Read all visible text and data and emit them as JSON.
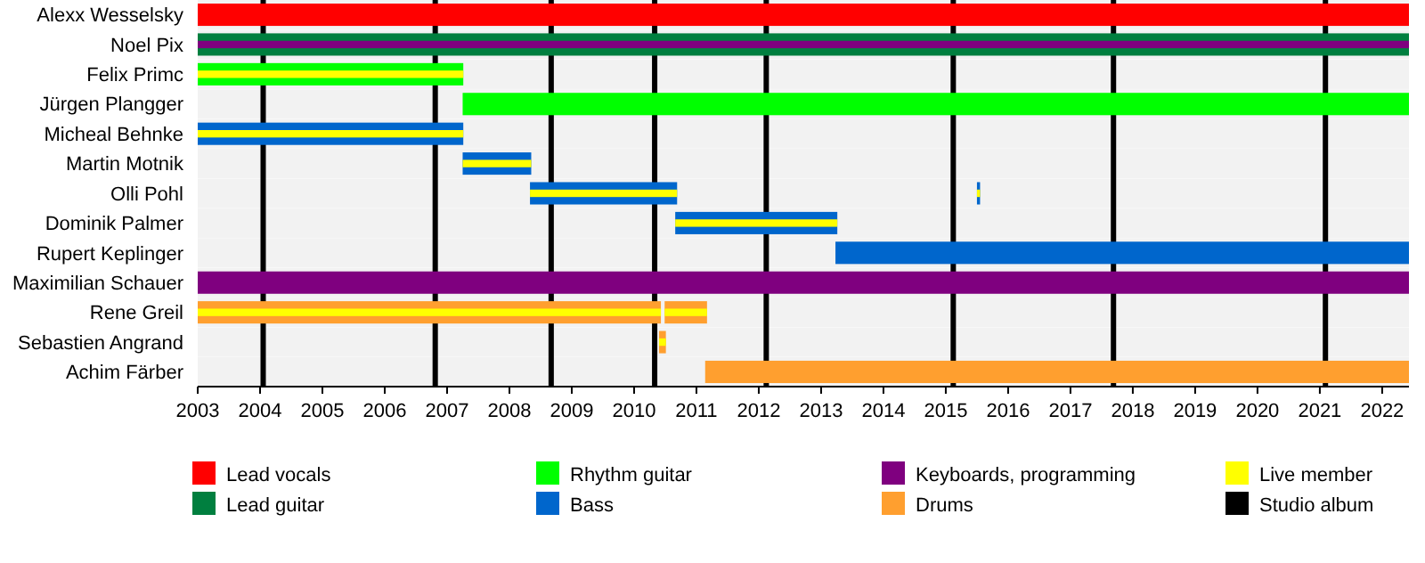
{
  "chart_data": {
    "type": "bar",
    "orientation": "horizontal",
    "categories": [
      "Alexx Wesselsky",
      "Noel Pix",
      "Felix Primc",
      "Jürgen Plangger",
      "Micheal Behnke",
      "Martin Motnik",
      "Olli Pohl",
      "Dominik Palmer",
      "Rupert Keplinger",
      "Maximilian Schauer",
      "Rene Greil",
      "Sebastien Angrand",
      "Achim Färber"
    ],
    "series": [
      {
        "name": "Lead vocals",
        "color": "#ff0000",
        "base": [
          2003,
          null,
          null,
          null,
          null,
          null,
          null,
          null,
          null,
          null,
          null,
          null,
          null
        ],
        "values": [
          19.43,
          null,
          null,
          null,
          null,
          null,
          null,
          null,
          null,
          null,
          null,
          null,
          null
        ]
      },
      {
        "name": "Lead guitar",
        "color": "#007f3f",
        "base": [
          null,
          2003,
          null,
          null,
          null,
          null,
          null,
          null,
          null,
          null,
          null,
          null,
          null
        ],
        "values": [
          null,
          19.43,
          null,
          null,
          null,
          null,
          null,
          null,
          null,
          null,
          null,
          null,
          null
        ]
      },
      {
        "name": "Rhythm guitar",
        "color": "#00ff00",
        "base": [
          null,
          null,
          2003,
          2007.25,
          null,
          null,
          null,
          null,
          null,
          null,
          null,
          null,
          null
        ],
        "values": [
          null,
          null,
          4.26,
          15.18,
          null,
          null,
          null,
          null,
          null,
          null,
          null,
          null,
          null
        ]
      },
      {
        "name": "Bass",
        "color": "#0066cc",
        "base": [
          null,
          null,
          null,
          null,
          2003,
          2007.25,
          2008.33,
          2010.66,
          2013.23,
          null,
          null,
          null,
          null
        ],
        "values": [
          null,
          null,
          null,
          null,
          4.26,
          1.1,
          2.36,
          2.6,
          9.2,
          null,
          null,
          null,
          null
        ]
      },
      {
        "name": "Keyboards, programming",
        "color": "#7f007f",
        "base": [
          null,
          2003,
          null,
          null,
          null,
          null,
          null,
          null,
          null,
          2003,
          null,
          null,
          null
        ],
        "values": [
          null,
          19.43,
          null,
          null,
          null,
          null,
          null,
          null,
          null,
          19.43,
          null,
          null,
          null
        ]
      },
      {
        "name": "Drums",
        "color": "#ff9f2f",
        "base": [
          null,
          null,
          null,
          null,
          null,
          null,
          null,
          null,
          null,
          null,
          2003,
          2010.4,
          2011.14
        ],
        "values": [
          null,
          null,
          null,
          null,
          null,
          null,
          null,
          null,
          null,
          null,
          7.43,
          0.11,
          11.29
        ]
      },
      {
        "name": "Live member",
        "color": "#ffff00",
        "base": [
          null,
          null,
          2003,
          null,
          2003,
          2007.25,
          2008.33,
          2010.66,
          null,
          null,
          2003,
          2010.4,
          null
        ],
        "values": [
          null,
          null,
          4.26,
          null,
          4.26,
          1.1,
          2.36,
          2.6,
          null,
          null,
          7.43,
          0.11,
          null
        ]
      },
      {
        "colors": [
          null,
          null,
          null,
          null,
          null,
          null,
          "#0066cc",
          null,
          null,
          null,
          "#ff9f2f",
          null,
          null
        ],
        "base": [
          null,
          null,
          null,
          null,
          null,
          null,
          2015.5,
          null,
          null,
          null,
          2010.49,
          null,
          null
        ],
        "values": [
          null,
          null,
          null,
          null,
          null,
          null,
          0.05,
          null,
          null,
          null,
          0.68,
          null,
          null
        ]
      },
      {
        "color": "#ffff00",
        "base": [
          null,
          null,
          null,
          null,
          null,
          null,
          2015.5,
          null,
          null,
          null,
          2010.49,
          null,
          null
        ],
        "values": [
          null,
          null,
          null,
          null,
          null,
          null,
          0.05,
          null,
          null,
          null,
          0.68,
          null,
          null
        ]
      }
    ],
    "xlim": [
      2003,
      2022.43
    ],
    "xticks": [
      2003,
      2004,
      2005,
      2006,
      2007,
      2008,
      2009,
      2010,
      2011,
      2012,
      2013,
      2014,
      2015,
      2016,
      2017,
      2018,
      2019,
      2020,
      2021,
      2022
    ],
    "ref_lines": [
      {
        "axis": "x",
        "value": 2004.05,
        "color": "#000000",
        "label": "Studio album"
      },
      {
        "axis": "x",
        "value": 2006.81,
        "color": "#000000"
      },
      {
        "axis": "x",
        "value": 2008.67,
        "color": "#000000"
      },
      {
        "axis": "x",
        "value": 2010.33,
        "color": "#000000"
      },
      {
        "axis": "x",
        "value": 2012.12,
        "color": "#000000"
      },
      {
        "axis": "x",
        "value": 2015.12,
        "color": "#000000"
      },
      {
        "axis": "x",
        "value": 2017.69,
        "color": "#000000"
      },
      {
        "axis": "x",
        "value": 2021.09,
        "color": "#000000"
      }
    ],
    "legend": "bottom",
    "grid": false
  }
}
